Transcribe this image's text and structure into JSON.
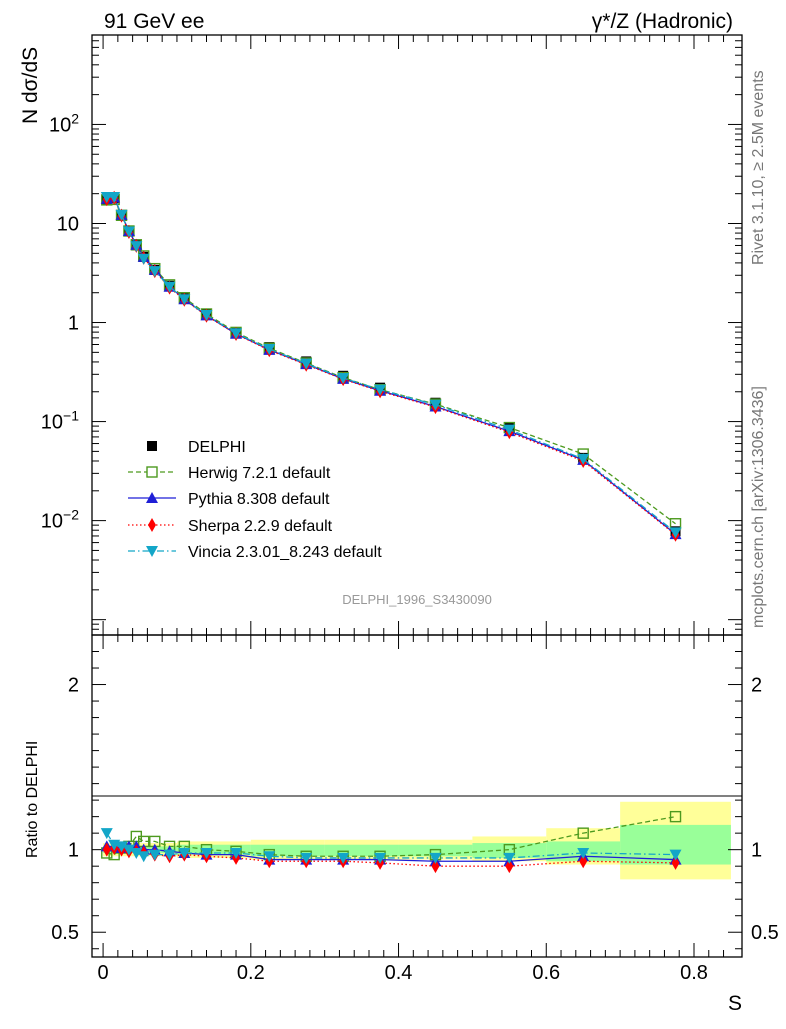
{
  "header": {
    "left_title": "91 GeV ee",
    "right_title": "γ*/Z (Hadronic)"
  },
  "side_labels": {
    "top": "Rivet 3.1.10, ≥ 2.5M events",
    "bottom": "mcplots.cern.ch [arXiv:1306.3436]"
  },
  "analysis_ref": "DELPHI_1996_S3430090",
  "chart_data": [
    {
      "type": "scatter",
      "scale": "log",
      "ylabel": "N dσ/dS",
      "xlim": [
        -0.015,
        0.865
      ],
      "ylim": [
        0.0007,
        800
      ],
      "y_tick_labels": [
        {
          "value": 100,
          "base": "10",
          "exp": "2"
        },
        {
          "value": 10,
          "text": "10"
        },
        {
          "value": 1,
          "text": "1"
        },
        {
          "value": 0.1,
          "base": "10",
          "exp": "−1"
        },
        {
          "value": 0.01,
          "base": "10",
          "exp": "−2"
        }
      ],
      "x": [
        0.005,
        0.015,
        0.025,
        0.035,
        0.045,
        0.055,
        0.07,
        0.09,
        0.11,
        0.14,
        0.18,
        0.225,
        0.275,
        0.325,
        0.375,
        0.45,
        0.55,
        0.65,
        0.775
      ],
      "series": [
        {
          "name": "DELPHI",
          "color": "#000000",
          "marker": "square-filled",
          "line": "none",
          "values": [
            17.5,
            18.0,
            12.0,
            8.3,
            6.0,
            4.6,
            3.4,
            2.35,
            1.75,
            1.22,
            0.8,
            0.565,
            0.405,
            0.29,
            0.22,
            0.155,
            0.087,
            0.043,
            0.0078
          ]
        },
        {
          "name": "Herwig 7.2.1 default",
          "color": "#4d9a1f",
          "marker": "square-open",
          "line": "dashed",
          "values": [
            17.3,
            17.5,
            12.1,
            8.4,
            6.1,
            4.7,
            3.5,
            2.4,
            1.78,
            1.22,
            0.795,
            0.55,
            0.39,
            0.278,
            0.21,
            0.15,
            0.087,
            0.047,
            0.0093
          ]
        },
        {
          "name": "Pythia 8.308 default",
          "color": "#1f1fd6",
          "marker": "triangle-up",
          "line": "solid",
          "values": [
            17.7,
            18.3,
            12.2,
            8.4,
            6.1,
            4.6,
            3.4,
            2.3,
            1.72,
            1.18,
            0.77,
            0.53,
            0.38,
            0.27,
            0.205,
            0.142,
            0.08,
            0.041,
            0.0073
          ]
        },
        {
          "name": "Sherpa 2.2.9 default",
          "color": "#ff0000",
          "marker": "diamond",
          "line": "dotted",
          "values": [
            17.6,
            18.2,
            12.0,
            8.2,
            5.95,
            4.5,
            3.3,
            2.25,
            1.7,
            1.17,
            0.765,
            0.525,
            0.375,
            0.268,
            0.202,
            0.14,
            0.078,
            0.04,
            0.0072
          ]
        },
        {
          "name": "Vincia 2.3.01_8.243 default",
          "color": "#13a6c8",
          "marker": "triangle-down",
          "line": "dashdot",
          "values": [
            18.5,
            18.5,
            12.2,
            8.3,
            5.9,
            4.4,
            3.3,
            2.3,
            1.72,
            1.19,
            0.78,
            0.54,
            0.385,
            0.275,
            0.21,
            0.148,
            0.083,
            0.042,
            0.0076
          ]
        }
      ]
    },
    {
      "type": "scatter",
      "ylabel": "Ratio to DELPHI",
      "xlabel": "S",
      "xlim": [
        -0.015,
        0.865
      ],
      "ylim": [
        0.35,
        2.3
      ],
      "y_tick_labels": [
        {
          "value": 2,
          "text": "2"
        },
        {
          "value": 1,
          "text": "1"
        },
        {
          "value": 0.5,
          "text": "0.5"
        }
      ],
      "x_tick_labels": [
        {
          "value": 0,
          "text": "0"
        },
        {
          "value": 0.2,
          "text": "0.2"
        },
        {
          "value": 0.4,
          "text": "0.4"
        },
        {
          "value": 0.6,
          "text": "0.6"
        },
        {
          "value": 0.8,
          "text": "0.8"
        }
      ],
      "uncertainty_bands": [
        {
          "x0": 0.0,
          "x1": 0.1,
          "stat": [
            0.98,
            1.02
          ],
          "total": [
            0.96,
            1.04
          ]
        },
        {
          "x0": 0.1,
          "x1": 0.2,
          "stat": [
            0.97,
            1.03
          ],
          "total": [
            0.95,
            1.05
          ]
        },
        {
          "x0": 0.2,
          "x1": 0.3,
          "stat": [
            0.96,
            1.03
          ],
          "total": [
            0.94,
            1.06
          ]
        },
        {
          "x0": 0.3,
          "x1": 0.4,
          "stat": [
            0.96,
            1.03
          ],
          "total": [
            0.94,
            1.06
          ]
        },
        {
          "x0": 0.4,
          "x1": 0.5,
          "stat": [
            0.96,
            1.03
          ],
          "total": [
            0.94,
            1.06
          ]
        },
        {
          "x0": 0.5,
          "x1": 0.6,
          "stat": [
            0.95,
            1.04
          ],
          "total": [
            0.93,
            1.08
          ]
        },
        {
          "x0": 0.6,
          "x1": 0.7,
          "stat": [
            0.93,
            1.05
          ],
          "total": [
            0.91,
            1.13
          ]
        },
        {
          "x0": 0.7,
          "x1": 0.85,
          "stat": [
            0.91,
            1.15
          ],
          "total": [
            0.82,
            1.29
          ]
        }
      ],
      "series": [
        {
          "name": "Herwig 7.2.1 default",
          "color": "#4d9a1f",
          "marker": "square-open",
          "line": "dashed",
          "values": [
            0.98,
            0.97,
            1.01,
            1.02,
            1.08,
            1.05,
            1.05,
            1.02,
            1.02,
            1.0,
            0.99,
            0.97,
            0.96,
            0.96,
            0.96,
            0.97,
            1.0,
            1.1,
            1.2
          ]
        },
        {
          "name": "Pythia 8.308 default",
          "color": "#1f1fd6",
          "marker": "triangle-up",
          "line": "solid",
          "values": [
            1.02,
            1.02,
            1.01,
            1.02,
            1.02,
            1.0,
            1.0,
            0.99,
            0.98,
            0.97,
            0.97,
            0.94,
            0.94,
            0.94,
            0.94,
            0.93,
            0.93,
            0.96,
            0.94
          ]
        },
        {
          "name": "Sherpa 2.2.9 default",
          "color": "#ff0000",
          "marker": "diamond",
          "line": "dotted",
          "values": [
            1.0,
            1.01,
            1.0,
            0.99,
            0.99,
            0.98,
            0.97,
            0.96,
            0.97,
            0.96,
            0.95,
            0.93,
            0.93,
            0.93,
            0.92,
            0.9,
            0.9,
            0.93,
            0.92
          ]
        },
        {
          "name": "Vincia 2.3.01_8.243 default",
          "color": "#13a6c8",
          "marker": "triangle-down",
          "line": "dashdot",
          "values": [
            1.1,
            1.03,
            1.02,
            1.0,
            0.98,
            0.96,
            0.97,
            0.97,
            0.98,
            0.98,
            0.98,
            0.96,
            0.95,
            0.95,
            0.95,
            0.95,
            0.95,
            0.98,
            0.97
          ]
        }
      ]
    }
  ]
}
